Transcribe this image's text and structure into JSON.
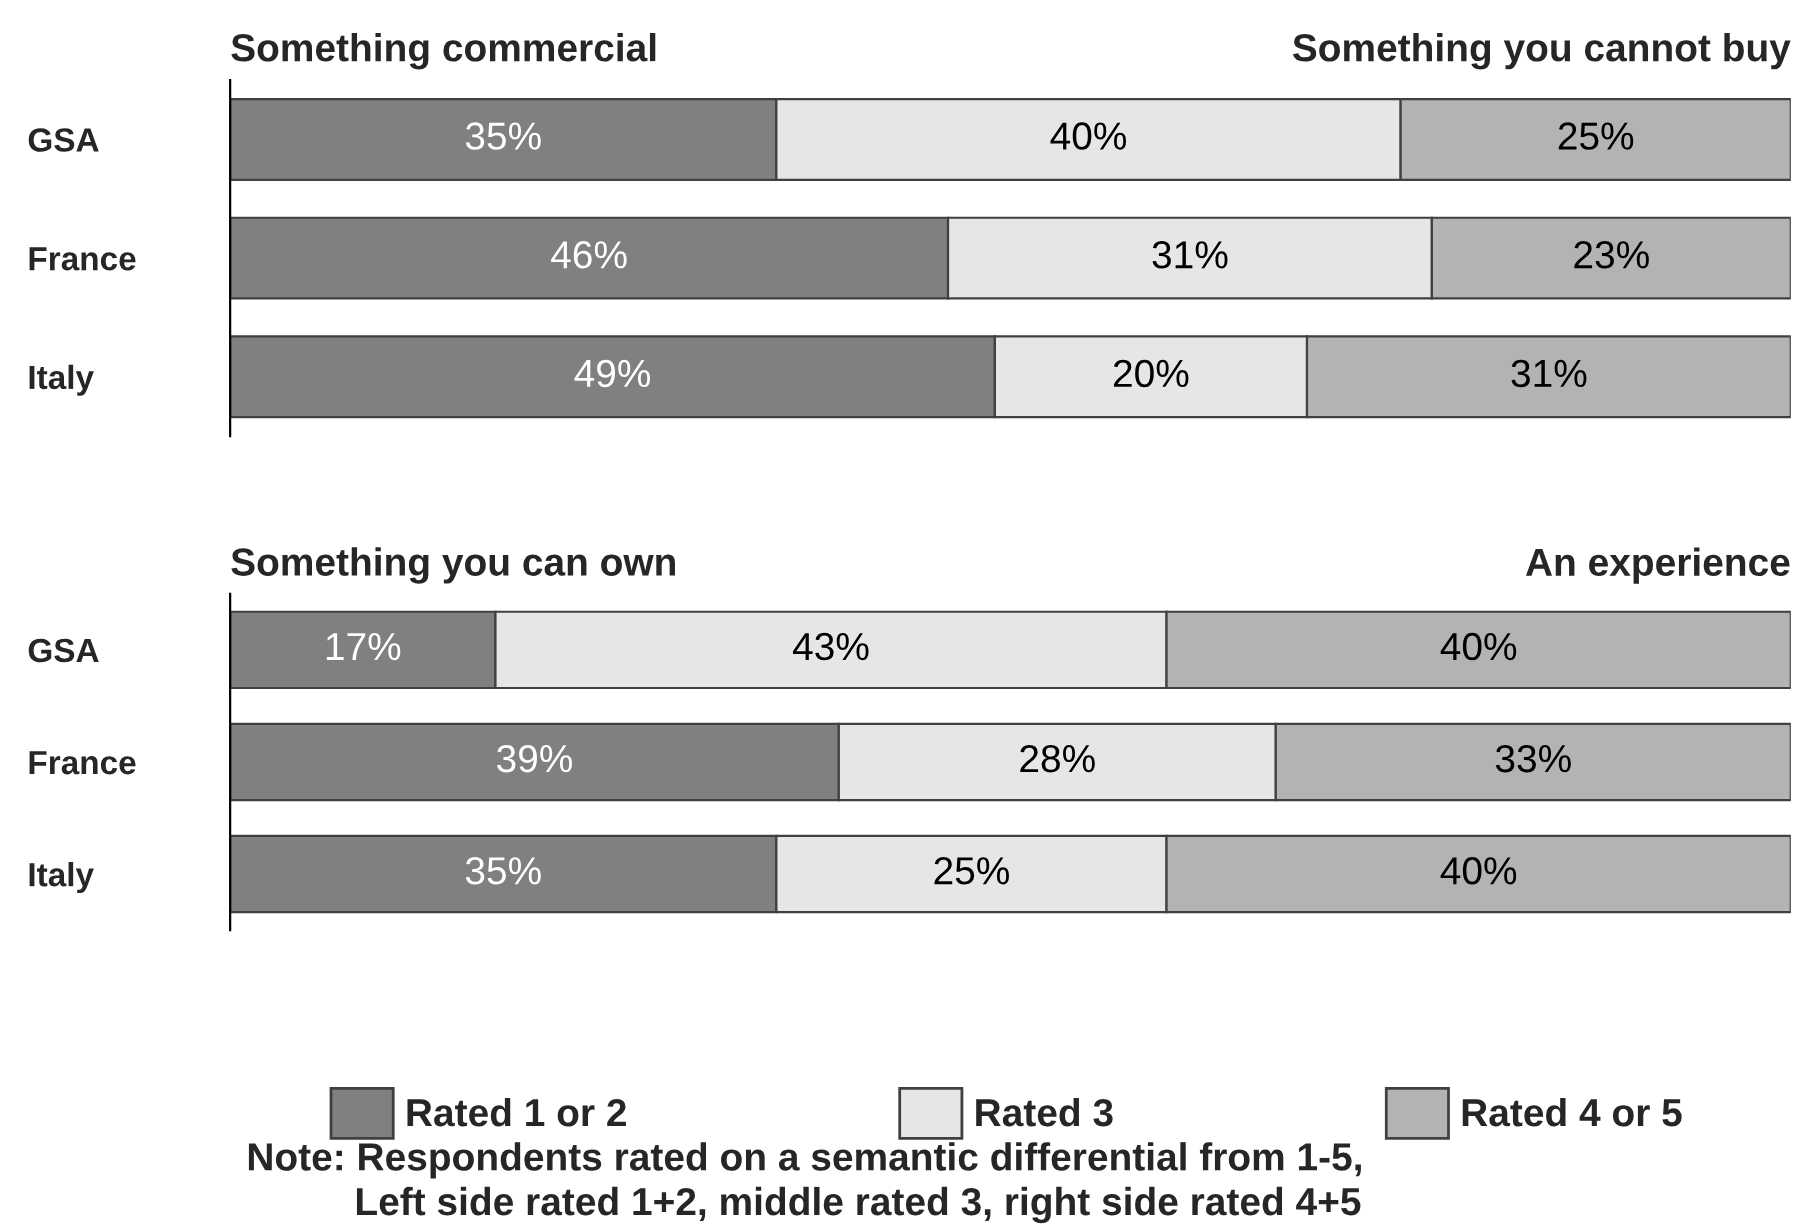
{
  "chart_data": [
    {
      "type": "bar",
      "orientation": "horizontal",
      "stacked": true,
      "categories": [
        "GSA",
        "France",
        "Italy"
      ],
      "tick_labels": "y",
      "legend": false,
      "series": [
        {
          "color": "#808080",
          "values": [
            35,
            46,
            49
          ],
          "value_labels": [
            "35%",
            "46%",
            "49%"
          ]
        },
        {
          "color": "#e6e6e6",
          "values": [
            40,
            31,
            20
          ],
          "value_labels": [
            "40%",
            "31%",
            "20%"
          ]
        },
        {
          "color": "#b3b3b3",
          "values": [
            25,
            23,
            31
          ],
          "value_labels": [
            "25%",
            "23%",
            "31%"
          ]
        }
      ],
      "annotations": [
        "Something commercial",
        "Something you cannot buy"
      ]
    },
    {
      "type": "bar",
      "orientation": "horizontal",
      "stacked": true,
      "categories": [
        "GSA",
        "France",
        "Italy"
      ],
      "tick_labels": "y",
      "legend": "bottom",
      "series": [
        {
          "name": "Rated 1 or 2",
          "color": "#808080",
          "values": [
            17,
            39,
            35
          ],
          "value_labels": [
            "17%",
            "39%",
            "35%"
          ]
        },
        {
          "name": "Rated 3",
          "color": "#e6e6e6",
          "values": [
            43,
            28,
            25
          ],
          "value_labels": [
            "43%",
            "28%",
            "25%"
          ]
        },
        {
          "name": "Rated 4 or 5",
          "color": "#b3b3b3",
          "values": [
            40,
            33,
            40
          ],
          "value_labels": [
            "40%",
            "33%",
            "40%"
          ]
        }
      ],
      "annotations": [
        "Something you can own",
        "An experience",
        "Note: Respondents rated on a semantic differential from 1-5,\n          Left side rated 1+2, middle rated 3, right side rated 4+5"
      ]
    }
  ]
}
